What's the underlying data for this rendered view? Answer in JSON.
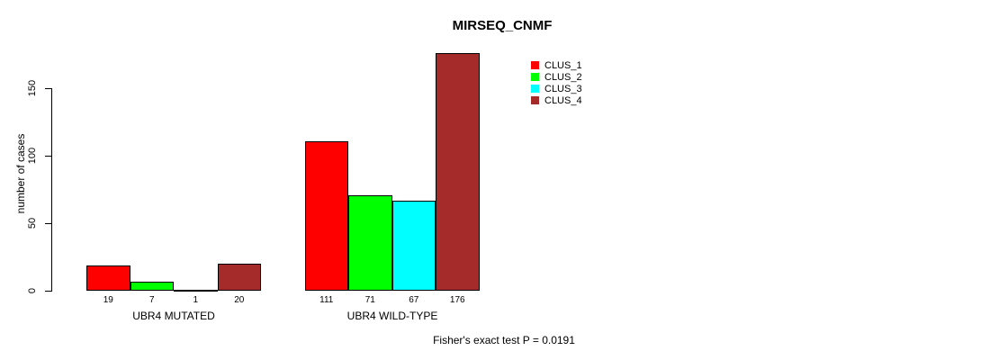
{
  "chart_data": {
    "type": "bar",
    "title": "MIRSEQ_CNMF",
    "ylabel": "number of cases",
    "ylim": [
      0,
      176
    ],
    "yticks": [
      0,
      50,
      100,
      150
    ],
    "grid": false,
    "legend_position": "top-right",
    "categories": [
      "UBR4 MUTATED",
      "UBR4 WILD-TYPE"
    ],
    "series": [
      {
        "name": "CLUS_1",
        "color": "#ff0000",
        "values": [
          19,
          111
        ]
      },
      {
        "name": "CLUS_2",
        "color": "#00ff00",
        "values": [
          7,
          71
        ]
      },
      {
        "name": "CLUS_3",
        "color": "#00ffff",
        "values": [
          1,
          67
        ]
      },
      {
        "name": "CLUS_4",
        "color": "#a52a2a",
        "values": [
          20,
          176
        ]
      }
    ],
    "annotation": "Fisher's exact test P = 0.0191",
    "bar_border_color": "#000000",
    "background_color": "#ffffff"
  }
}
